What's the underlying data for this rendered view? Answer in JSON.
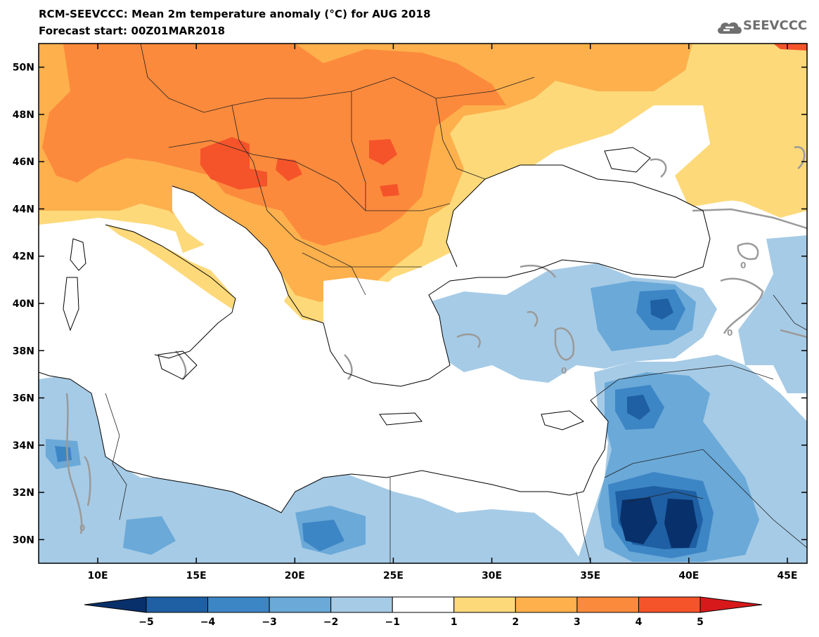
{
  "header": {
    "title": "RCM-SEEVCCC: Mean 2m temperature anomaly (°C) for AUG 2018",
    "subtitle": "Forecast start: 00Z01MAR2018",
    "logo_text": "SEEVCCC",
    "logo_icon": "cloud-icon"
  },
  "map": {
    "lon_range": [
      7,
      46
    ],
    "lat_range": [
      29,
      51
    ],
    "lat_ticks": [
      {
        "value": 50,
        "label": "50N"
      },
      {
        "value": 48,
        "label": "48N"
      },
      {
        "value": 46,
        "label": "46N"
      },
      {
        "value": 44,
        "label": "44N"
      },
      {
        "value": 42,
        "label": "42N"
      },
      {
        "value": 40,
        "label": "40N"
      },
      {
        "value": 38,
        "label": "38N"
      },
      {
        "value": 36,
        "label": "36N"
      },
      {
        "value": 34,
        "label": "34N"
      },
      {
        "value": 32,
        "label": "32N"
      },
      {
        "value": 30,
        "label": "30N"
      }
    ],
    "lon_ticks": [
      {
        "value": 10,
        "label": "10E"
      },
      {
        "value": 15,
        "label": "15E"
      },
      {
        "value": 20,
        "label": "20E"
      },
      {
        "value": 25,
        "label": "25E"
      },
      {
        "value": 30,
        "label": "30E"
      },
      {
        "value": 35,
        "label": "35E"
      },
      {
        "value": 40,
        "label": "40E"
      },
      {
        "value": 45,
        "label": "45E"
      }
    ],
    "contour_label": "0"
  },
  "colorbar": {
    "colors": [
      "#08306b",
      "#1f5fa3",
      "#3d86c5",
      "#6aa9d8",
      "#a6cbe6",
      "#ffffff",
      "#fdd97a",
      "#fdb04c",
      "#fc8a3c",
      "#f5542a",
      "#d7191c"
    ],
    "labels": [
      "−5",
      "−4",
      "−3",
      "−2",
      "−1",
      "1",
      "2",
      "3",
      "4",
      "5"
    ]
  },
  "colors": {
    "warm_1": "#fdd97a",
    "warm_2": "#fdb04c",
    "warm_3": "#fc8a3c",
    "warm_4": "#f5542a",
    "cool_1": "#a6cbe6",
    "cool_2": "#6aa9d8",
    "cool_3": "#3d86c5",
    "cool_4": "#1f5fa3",
    "cool_5": "#08306b",
    "contour": "#9a9a9a"
  }
}
